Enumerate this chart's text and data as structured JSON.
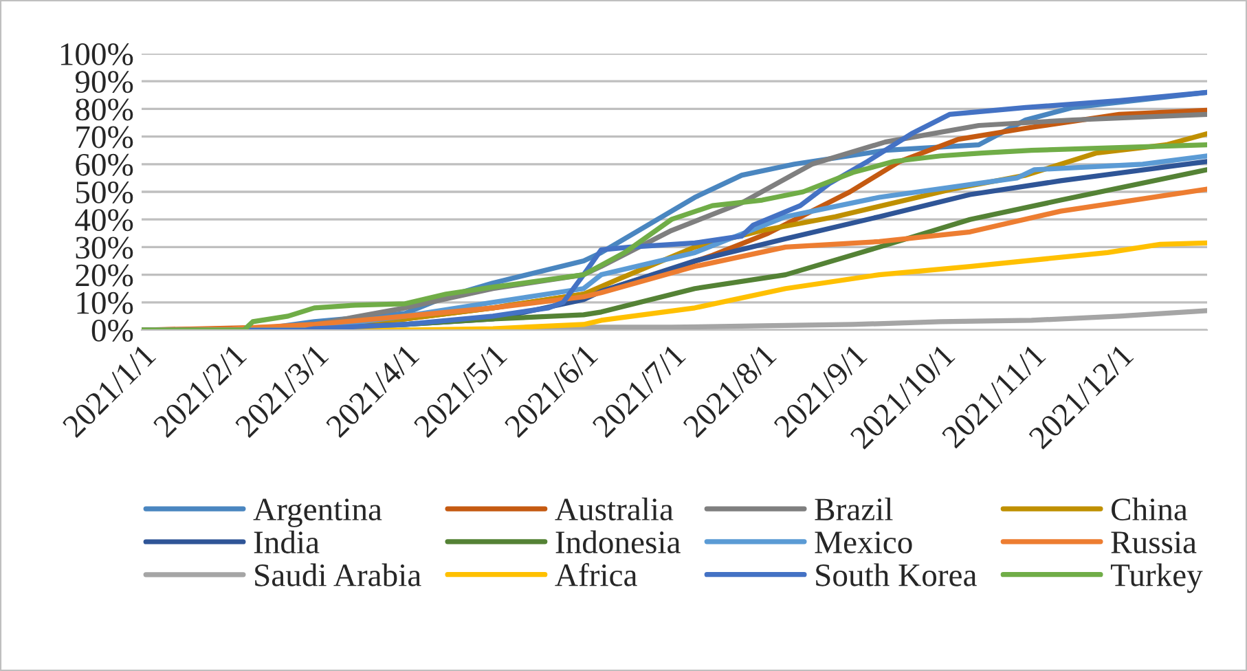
{
  "chart_data": {
    "type": "line",
    "xlim": [
      "2021-01-01",
      "2021-12-31"
    ],
    "xticks": [
      {
        "value": "2021-01-01",
        "label": "2021/1/1"
      },
      {
        "value": "2021-02-01",
        "label": "2021/2/1"
      },
      {
        "value": "2021-03-01",
        "label": "2021/3/1"
      },
      {
        "value": "2021-04-01",
        "label": "2021/4/1"
      },
      {
        "value": "2021-05-01",
        "label": "2021/5/1"
      },
      {
        "value": "2021-06-01",
        "label": "2021/6/1"
      },
      {
        "value": "2021-07-01",
        "label": "2021/7/1"
      },
      {
        "value": "2021-08-01",
        "label": "2021/8/1"
      },
      {
        "value": "2021-09-01",
        "label": "2021/9/1"
      },
      {
        "value": "2021-10-01",
        "label": "2021/10/1"
      },
      {
        "value": "2021-11-01",
        "label": "2021/11/1"
      },
      {
        "value": "2021-12-01",
        "label": "2021/12/1"
      }
    ],
    "ylim": [
      0,
      100
    ],
    "yticks": [
      {
        "value": 0,
        "label": "0%"
      },
      {
        "value": 10,
        "label": "10%"
      },
      {
        "value": 20,
        "label": "20%"
      },
      {
        "value": 30,
        "label": "30%"
      },
      {
        "value": 40,
        "label": "40%"
      },
      {
        "value": 50,
        "label": "50%"
      },
      {
        "value": 60,
        "label": "60%"
      },
      {
        "value": 70,
        "label": "70%"
      },
      {
        "value": 80,
        "label": "80%"
      },
      {
        "value": 90,
        "label": "90%"
      },
      {
        "value": 100,
        "label": "100%"
      }
    ],
    "grid": "y",
    "legend": "bottom",
    "marker": "none",
    "line_style": "solid",
    "series": [
      {
        "name": "Argentina",
        "color": "#4a86c0",
        "x": [
          "2021-01-01",
          "2021-02-01",
          "2021-02-15",
          "2021-03-01",
          "2021-04-01",
          "2021-04-15",
          "2021-05-01",
          "2021-06-01",
          "2021-06-07",
          "2021-07-09",
          "2021-07-25",
          "2021-08-12",
          "2021-09-12",
          "2021-10-14",
          "2021-10-30",
          "2021-11-15",
          "2021-12-31"
        ],
        "values": [
          0,
          0,
          1,
          3,
          6,
          12,
          17,
          25,
          28,
          48,
          56,
          60,
          65,
          67,
          76,
          80.5,
          86
        ]
      },
      {
        "name": "Australia",
        "color": "#c55a11",
        "x": [
          "2021-01-01",
          "2021-02-15",
          "2021-03-01",
          "2021-04-01",
          "2021-05-01",
          "2021-06-01",
          "2021-06-07",
          "2021-07-01",
          "2021-07-15",
          "2021-08-03",
          "2021-08-31",
          "2021-09-17",
          "2021-10-07",
          "2021-10-30",
          "2021-12-01",
          "2021-12-31"
        ],
        "values": [
          0,
          1,
          2,
          4,
          8,
          13,
          14,
          22,
          27,
          35,
          50,
          61,
          69,
          73,
          78,
          79.5
        ]
      },
      {
        "name": "Brazil",
        "color": "#7f7f7f",
        "x": [
          "2021-01-01",
          "2021-02-01",
          "2021-03-01",
          "2021-04-01",
          "2021-05-01",
          "2021-06-01",
          "2021-06-07",
          "2021-07-01",
          "2021-07-25",
          "2021-08-18",
          "2021-09-12",
          "2021-10-14",
          "2021-11-15",
          "2021-12-31"
        ],
        "values": [
          0,
          0,
          2,
          8,
          15,
          20,
          23,
          36,
          46,
          60,
          68,
          74,
          76,
          78
        ]
      },
      {
        "name": "China",
        "color": "#bf9000",
        "x": [
          "2021-01-01",
          "2021-02-01",
          "2021-03-01",
          "2021-04-01",
          "2021-05-01",
          "2021-06-01",
          "2021-06-12",
          "2021-07-09",
          "2021-08-01",
          "2021-08-26",
          "2021-10-05",
          "2021-10-30",
          "2021-11-23",
          "2021-12-17",
          "2021-12-31"
        ],
        "values": [
          0,
          0,
          1,
          4,
          8,
          13,
          18,
          30,
          36,
          41,
          51,
          56,
          64,
          67,
          71
        ]
      },
      {
        "name": "India",
        "color": "#2f5597",
        "x": [
          "2021-01-01",
          "2021-02-01",
          "2021-03-01",
          "2021-04-01",
          "2021-05-01",
          "2021-06-01",
          "2021-06-07",
          "2021-07-09",
          "2021-08-09",
          "2021-09-10",
          "2021-10-11",
          "2021-11-11",
          "2021-12-31"
        ],
        "values": [
          0,
          0,
          0.5,
          2,
          4,
          11,
          14,
          25,
          33,
          41,
          49,
          54,
          61
        ]
      },
      {
        "name": "Indonesia",
        "color": "#548235",
        "x": [
          "2021-01-01",
          "2021-02-01",
          "2021-03-01",
          "2021-04-01",
          "2021-05-01",
          "2021-06-01",
          "2021-06-07",
          "2021-07-09",
          "2021-08-09",
          "2021-09-10",
          "2021-10-11",
          "2021-11-11",
          "2021-12-31"
        ],
        "values": [
          0,
          0,
          0.3,
          2,
          4,
          5.5,
          6.5,
          15,
          20,
          30,
          40,
          47,
          58
        ]
      },
      {
        "name": "Mexico",
        "color": "#5b9bd5",
        "x": [
          "2021-01-01",
          "2021-02-01",
          "2021-03-01",
          "2021-04-01",
          "2021-05-01",
          "2021-06-01",
          "2021-06-07",
          "2021-07-09",
          "2021-08-09",
          "2021-09-10",
          "2021-10-27",
          "2021-11-02",
          "2021-12-09",
          "2021-12-31"
        ],
        "values": [
          0,
          0,
          1,
          5,
          10,
          15,
          20,
          28,
          41,
          48,
          55,
          58,
          60,
          63
        ]
      },
      {
        "name": "Russia",
        "color": "#ed7d31",
        "x": [
          "2021-01-01",
          "2021-02-01",
          "2021-03-01",
          "2021-04-01",
          "2021-05-01",
          "2021-06-01",
          "2021-06-07",
          "2021-07-09",
          "2021-08-09",
          "2021-09-10",
          "2021-10-11",
          "2021-11-11",
          "2021-12-31"
        ],
        "values": [
          0,
          0.5,
          2,
          5,
          8,
          12,
          13.5,
          23,
          30,
          32,
          35.5,
          43,
          51
        ]
      },
      {
        "name": "Saudi Arabia",
        "color": "#a5a5a5",
        "x": [
          "2021-01-01",
          "2021-05-01",
          "2021-06-01",
          "2021-07-01",
          "2021-08-01",
          "2021-09-01",
          "2021-10-01",
          "2021-11-01",
          "2021-12-01",
          "2021-12-31"
        ],
        "values": [
          0,
          0,
          1,
          1,
          1.5,
          2,
          3,
          3.5,
          5,
          7
        ]
      },
      {
        "name": "Africa",
        "color": "#ffc000",
        "x": [
          "2021-01-01",
          "2021-04-01",
          "2021-05-01",
          "2021-06-01",
          "2021-06-07",
          "2021-07-09",
          "2021-08-09",
          "2021-09-10",
          "2021-10-11",
          "2021-11-27",
          "2021-12-15",
          "2021-12-31"
        ],
        "values": [
          0,
          0,
          0.5,
          2,
          3.5,
          8,
          15,
          20,
          23,
          28,
          31,
          31.5
        ]
      },
      {
        "name": "South Korea",
        "color": "#4472c4",
        "x": [
          "2021-01-01",
          "2021-02-26",
          "2021-03-01",
          "2021-04-01",
          "2021-05-01",
          "2021-05-20",
          "2021-05-25",
          "2021-06-01",
          "2021-06-07",
          "2021-06-17",
          "2021-07-09",
          "2021-07-25",
          "2021-07-29",
          "2021-08-14",
          "2021-08-24",
          "2021-09-06",
          "2021-09-21",
          "2021-10-04",
          "2021-10-30",
          "2021-12-01",
          "2021-12-31"
        ],
        "values": [
          0,
          0,
          0.5,
          2,
          5,
          8,
          10,
          20,
          29,
          30,
          31.5,
          34,
          38,
          45,
          53,
          61,
          71,
          78,
          80.5,
          83,
          86
        ]
      },
      {
        "name": "Turkey",
        "color": "#70ad47",
        "x": [
          "2021-01-01",
          "2021-02-05",
          "2021-02-08",
          "2021-02-20",
          "2021-03-01",
          "2021-03-15",
          "2021-04-01",
          "2021-04-15",
          "2021-05-01",
          "2021-05-15",
          "2021-06-01",
          "2021-06-15",
          "2021-07-01",
          "2021-07-15",
          "2021-08-01",
          "2021-08-15",
          "2021-09-01",
          "2021-09-15",
          "2021-10-01",
          "2021-10-15",
          "2021-11-01",
          "2021-12-01",
          "2021-12-31"
        ],
        "values": [
          0,
          0,
          3,
          5,
          8,
          9,
          9.5,
          13,
          15.5,
          17.5,
          20,
          28,
          40,
          45,
          47,
          50,
          57,
          61,
          63,
          64,
          65,
          66,
          67
        ]
      }
    ]
  }
}
